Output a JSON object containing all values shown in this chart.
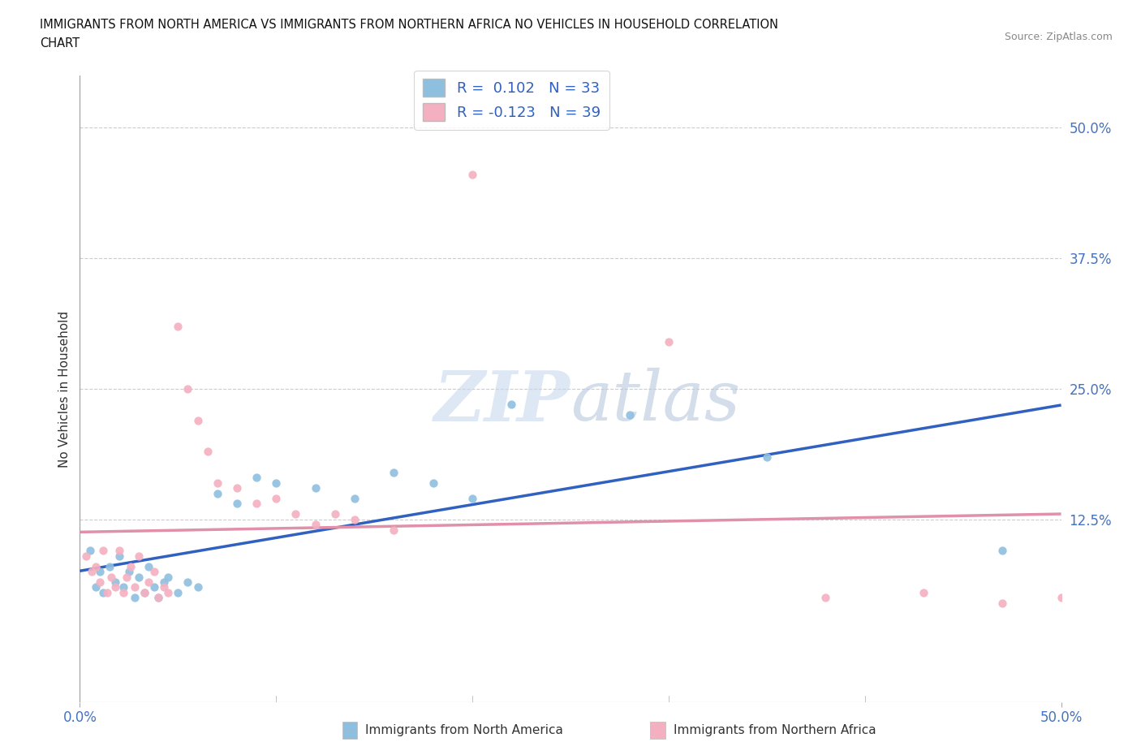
{
  "title_line1": "IMMIGRANTS FROM NORTH AMERICA VS IMMIGRANTS FROM NORTHERN AFRICA NO VEHICLES IN HOUSEHOLD CORRELATION",
  "title_line2": "CHART",
  "source_text": "Source: ZipAtlas.com",
  "watermark": "ZIPatlas",
  "ylabel": "No Vehicles in Household",
  "xlim": [
    0.0,
    0.5
  ],
  "ylim": [
    -0.05,
    0.55
  ],
  "x_ticks": [
    0.0,
    0.5
  ],
  "x_tick_labels": [
    "0.0%",
    "50.0%"
  ],
  "y_tick_labels": [
    "12.5%",
    "25.0%",
    "37.5%",
    "50.0%"
  ],
  "y_ticks": [
    0.125,
    0.25,
    0.375,
    0.5
  ],
  "color_blue": "#8fbfdf",
  "color_pink": "#f4b0c0",
  "line_blue": "#3060c0",
  "line_pink": "#e090a8",
  "R_blue": 0.102,
  "N_blue": 33,
  "R_pink": -0.123,
  "N_pink": 39,
  "legend_label_blue": "Immigrants from North America",
  "legend_label_pink": "Immigrants from Northern Africa",
  "blue_scatter_x": [
    0.005,
    0.008,
    0.01,
    0.012,
    0.015,
    0.018,
    0.02,
    0.022,
    0.025,
    0.028,
    0.03,
    0.033,
    0.035,
    0.038,
    0.04,
    0.043,
    0.045,
    0.05,
    0.055,
    0.06,
    0.07,
    0.08,
    0.09,
    0.1,
    0.12,
    0.14,
    0.16,
    0.18,
    0.2,
    0.22,
    0.28,
    0.35,
    0.47
  ],
  "blue_scatter_y": [
    0.095,
    0.06,
    0.075,
    0.055,
    0.08,
    0.065,
    0.09,
    0.06,
    0.075,
    0.05,
    0.07,
    0.055,
    0.08,
    0.06,
    0.05,
    0.065,
    0.07,
    0.055,
    0.065,
    0.06,
    0.15,
    0.14,
    0.165,
    0.16,
    0.155,
    0.145,
    0.17,
    0.16,
    0.145,
    0.235,
    0.225,
    0.185,
    0.095
  ],
  "pink_scatter_x": [
    0.003,
    0.006,
    0.008,
    0.01,
    0.012,
    0.014,
    0.016,
    0.018,
    0.02,
    0.022,
    0.024,
    0.026,
    0.028,
    0.03,
    0.033,
    0.035,
    0.038,
    0.04,
    0.043,
    0.045,
    0.05,
    0.055,
    0.06,
    0.065,
    0.07,
    0.08,
    0.09,
    0.1,
    0.11,
    0.12,
    0.13,
    0.14,
    0.16,
    0.2,
    0.3,
    0.38,
    0.43,
    0.47,
    0.5
  ],
  "pink_scatter_y": [
    0.09,
    0.075,
    0.08,
    0.065,
    0.095,
    0.055,
    0.07,
    0.06,
    0.095,
    0.055,
    0.07,
    0.08,
    0.06,
    0.09,
    0.055,
    0.065,
    0.075,
    0.05,
    0.06,
    0.055,
    0.31,
    0.25,
    0.22,
    0.19,
    0.16,
    0.155,
    0.14,
    0.145,
    0.13,
    0.12,
    0.13,
    0.125,
    0.115,
    0.455,
    0.295,
    0.05,
    0.055,
    0.045,
    0.05
  ],
  "grid_color": "#cccccc",
  "background_color": "#ffffff"
}
